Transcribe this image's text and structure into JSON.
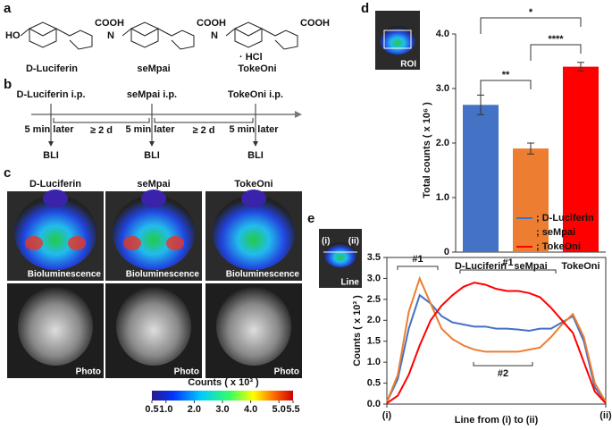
{
  "panels": {
    "a": {
      "label": "a",
      "compounds": [
        {
          "name": "D-Luciferin",
          "groups": [
            "HO",
            "COOH"
          ]
        },
        {
          "name": "seMpai",
          "groups": [
            "N",
            "COOH"
          ]
        },
        {
          "name": "TokeOni",
          "groups": [
            "N",
            "COOH",
            "· HCl"
          ]
        }
      ]
    },
    "b": {
      "label": "b",
      "injections": [
        "D-Luciferin i.p.",
        "seMpai i.p.",
        "TokeOni i.p."
      ],
      "delay": "5 min later",
      "interval": "≥ 2 d",
      "readout": "BLI"
    },
    "c": {
      "label": "c",
      "columns": [
        "D-Luciferin",
        "seMpai",
        "TokeOni"
      ],
      "rows": [
        "Bioluminescence",
        "Photo"
      ],
      "colorbar": {
        "title": "Counts ( x 10³ )",
        "range": [
          0.5,
          5.5
        ],
        "ticks": [
          0.5,
          {
            "value": 1,
            "label": "1.0"
          },
          {
            "value": 2,
            "label": "2.0"
          },
          {
            "value": 3,
            "label": "3.0"
          },
          {
            "value": 4,
            "label": "4.0"
          },
          {
            "value": 5,
            "label": "5.0"
          },
          5.5
        ]
      }
    },
    "d": {
      "label": "d",
      "inset": "ROI"
    },
    "e": {
      "label": "e",
      "inset": "Line",
      "inset_ends": [
        "(i)",
        "(ii)"
      ]
    }
  },
  "chart_data": [
    {
      "type": "bar",
      "ylabel": "Total counts ( x 10⁶ )",
      "categories": [
        "D-Luciferin",
        "seMpai",
        "TokeOni"
      ],
      "values": [
        2.7,
        1.9,
        3.4
      ],
      "errors": [
        0.18,
        0.1,
        0.08
      ],
      "colors": [
        "#4472c4",
        "#ed7d31",
        "#ff0000"
      ],
      "ylim": [
        0,
        4
      ],
      "yticks": [
        0,
        {
          "value": 1,
          "label": "1.0"
        },
        {
          "value": 2,
          "label": "2.0"
        },
        {
          "value": 3,
          "label": "3.0"
        },
        {
          "value": 4,
          "label": "4.0"
        }
      ],
      "significance": [
        "**",
        "****",
        "*"
      ]
    },
    {
      "type": "line",
      "xlabel": "Line from (i) to (ii)",
      "ylabel": "Counts ( x 10³ )",
      "x": [
        0,
        0.05,
        0.1,
        0.15,
        0.2,
        0.25,
        0.3,
        0.35,
        0.4,
        0.45,
        0.5,
        0.55,
        0.6,
        0.65,
        0.7,
        0.75,
        0.8,
        0.85,
        0.9,
        0.95,
        1
      ],
      "xlim": [
        0,
        1
      ],
      "xticks": [
        {
          "value": 0,
          "label": "(i)"
        },
        {
          "value": 1,
          "label": "(ii)"
        }
      ],
      "ylim": [
        0,
        3.5
      ],
      "yticks": [
        {
          "value": 0,
          "label": "0.0"
        },
        0.5,
        {
          "value": 1,
          "label": "1.0"
        },
        1.5,
        {
          "value": 2,
          "label": "2.0"
        },
        2.5,
        {
          "value": 3,
          "label": "3.0"
        },
        3.5
      ],
      "series": [
        {
          "name": "; D-Luciferin",
          "color": "#4472c4",
          "values": [
            0.05,
            0.6,
            1.8,
            2.6,
            2.4,
            2.1,
            1.95,
            1.9,
            1.85,
            1.85,
            1.8,
            1.8,
            1.78,
            1.75,
            1.8,
            1.8,
            1.95,
            2.1,
            1.5,
            0.4,
            0.05
          ]
        },
        {
          "name": "; seMpai",
          "color": "#ed7d31",
          "values": [
            0.05,
            0.7,
            2.2,
            3.0,
            2.4,
            1.8,
            1.55,
            1.4,
            1.3,
            1.25,
            1.25,
            1.25,
            1.25,
            1.3,
            1.35,
            1.6,
            1.9,
            2.15,
            1.6,
            0.5,
            0.05
          ]
        },
        {
          "name": "; TokeOni",
          "color": "#ff0000",
          "values": [
            0.02,
            0.2,
            0.7,
            1.4,
            2.0,
            2.35,
            2.6,
            2.8,
            2.9,
            2.85,
            2.75,
            2.7,
            2.7,
            2.65,
            2.55,
            2.3,
            2.0,
            1.7,
            1.0,
            0.3,
            0.02
          ]
        }
      ],
      "annotations": [
        "#1",
        "#1",
        "#2"
      ]
    }
  ]
}
